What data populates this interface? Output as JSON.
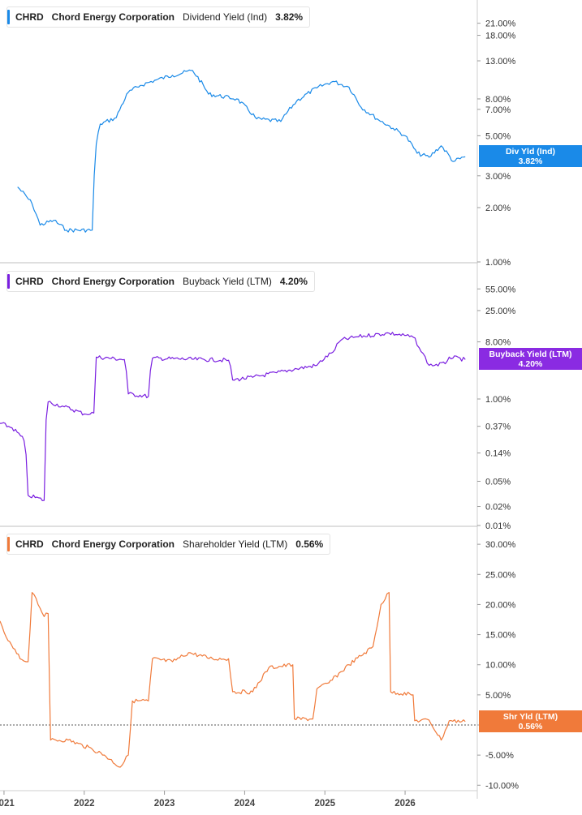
{
  "chart_data": [
    {
      "type": "line",
      "ticker": "CHRD",
      "company": "Chord Energy Corporation",
      "metric": "Dividend Yield (Ind)",
      "value_label": "3.82%",
      "tag_name": "Div Yld (Ind)",
      "tag_value": "3.82%",
      "color": "#1a8ae8",
      "scale": "log",
      "ylim": [
        1.0,
        26.0
      ],
      "yticks": [
        21,
        18,
        13,
        8,
        7,
        5,
        3,
        2,
        1
      ],
      "ytick_labels": [
        "21.00%",
        "18.00%",
        "13.00%",
        "8.00%",
        "7.00%",
        "5.00%",
        "3.00%",
        "2.00%",
        "1.00%"
      ],
      "x": [
        2021.17,
        2021.35,
        2021.45,
        2021.62,
        2021.78,
        2022.1,
        2022.15,
        2022.2,
        2022.4,
        2022.55,
        2022.7,
        2022.9,
        2023.1,
        2023.35,
        2023.55,
        2023.9,
        2024.15,
        2024.45,
        2024.65,
        2024.9,
        2025.1,
        2025.3,
        2025.45,
        2025.65,
        2025.85,
        2026.0,
        2026.15,
        2026.3,
        2026.45,
        2026.6,
        2026.75
      ],
      "y": [
        2.6,
        2.1,
        1.6,
        1.7,
        1.5,
        1.5,
        4.5,
        5.8,
        6.3,
        8.7,
        9.5,
        10.2,
        10.8,
        11.5,
        8.5,
        8.0,
        6.2,
        6.0,
        7.8,
        9.2,
        10.0,
        9.3,
        7.2,
        6.2,
        5.5,
        5.0,
        4.0,
        3.8,
        4.4,
        3.6,
        3.82
      ]
    },
    {
      "type": "line",
      "ticker": "CHRD",
      "company": "Chord Energy Corporation",
      "metric": "Buyback Yield (LTM)",
      "value_label": "4.20%",
      "tag_name": "Buyback Yield (LTM)",
      "tag_value": "4.20%",
      "color": "#7a1fe0",
      "scale": "log",
      "ylim": [
        0.01,
        100.0
      ],
      "yticks": [
        55,
        25,
        8,
        1,
        0.37,
        0.14,
        0.05,
        0.02,
        0.01
      ],
      "ytick_labels": [
        "55.00%",
        "25.00%",
        "8.00%",
        "1.00%",
        "0.37%",
        "0.14%",
        "0.05%",
        "0.02%",
        "0.01%"
      ],
      "x": [
        2020.93,
        2021.1,
        2021.25,
        2021.3,
        2021.5,
        2021.55,
        2021.75,
        2022.0,
        2022.12,
        2022.15,
        2022.5,
        2022.55,
        2022.8,
        2022.85,
        2023.8,
        2023.85,
        2024.1,
        2024.4,
        2024.65,
        2024.9,
        2025.1,
        2025.2,
        2025.4,
        2025.8,
        2026.1,
        2026.2,
        2026.3,
        2026.5,
        2026.55,
        2026.75
      ],
      "y": [
        0.42,
        0.35,
        0.22,
        0.03,
        0.025,
        0.9,
        0.75,
        0.58,
        0.6,
        4.6,
        4.2,
        1.2,
        1.1,
        4.4,
        4.1,
        2.0,
        2.2,
        2.6,
        3.0,
        3.4,
        5.5,
        8.5,
        9.6,
        11.0,
        9.5,
        5.6,
        3.4,
        3.6,
        4.6,
        4.2
      ]
    },
    {
      "type": "line",
      "ticker": "CHRD",
      "company": "Chord Energy Corporation",
      "metric": "Shareholder Yield (LTM)",
      "value_label": "0.56%",
      "tag_name": "Shr Yld (LTM)",
      "tag_value": "0.56%",
      "color": "#f07a3a",
      "scale": "linear",
      "ylim": [
        -10.5,
        31.5
      ],
      "yticks": [
        30,
        25,
        20,
        15,
        10,
        5,
        0,
        -5,
        -10
      ],
      "ytick_labels": [
        "30.00%",
        "25.00%",
        "20.00%",
        "15.00%",
        "10.00%",
        "5.00%",
        "",
        "-5.00%",
        "-10.00%"
      ],
      "zero_line": true,
      "x": [
        2020.93,
        2021.05,
        2021.2,
        2021.3,
        2021.35,
        2021.4,
        2021.5,
        2021.55,
        2021.58,
        2021.8,
        2022.1,
        2022.25,
        2022.45,
        2022.55,
        2022.6,
        2022.8,
        2022.85,
        2023.1,
        2023.3,
        2023.6,
        2023.8,
        2023.85,
        2024.1,
        2024.3,
        2024.6,
        2024.62,
        2024.85,
        2024.9,
        2025.05,
        2025.3,
        2025.6,
        2025.7,
        2025.8,
        2025.82,
        2026.1,
        2026.12,
        2026.3,
        2026.45,
        2026.55,
        2026.75
      ],
      "y": [
        17.5,
        14.0,
        11.0,
        10.5,
        22.0,
        21.0,
        18.0,
        18.5,
        -2.5,
        -2.5,
        -4.0,
        -5.0,
        -7.0,
        -5.0,
        4.0,
        4.0,
        11.0,
        10.5,
        12.0,
        11.0,
        11.0,
        5.5,
        5.5,
        9.5,
        10.0,
        1.0,
        1.0,
        6.0,
        7.0,
        10.0,
        13.0,
        20.0,
        22.0,
        5.5,
        5.0,
        0.7,
        0.8,
        -2.5,
        0.7,
        0.56
      ]
    }
  ],
  "x_axis": {
    "ticks": [
      2021,
      2022,
      2023,
      2024,
      2025,
      2026
    ],
    "labels": [
      "2021",
      "2022",
      "2023",
      "2024",
      "2025",
      "2026"
    ],
    "range": [
      2020.95,
      2026.9
    ]
  }
}
